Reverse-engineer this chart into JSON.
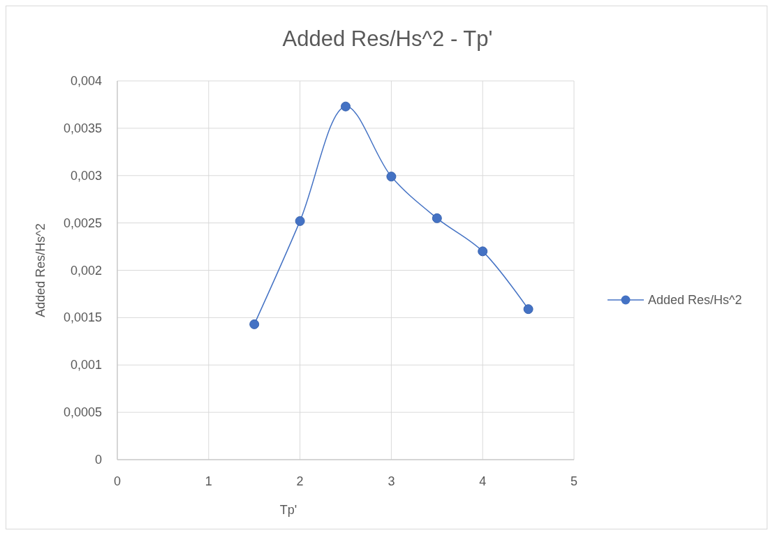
{
  "chart_data": {
    "type": "line",
    "title": "Added Res/Hs^2 - Tp'",
    "xlabel": "Tp'",
    "ylabel": "Added  Res/Hs^2",
    "x": [
      1.5,
      2,
      2.5,
      3,
      3.5,
      4,
      4.5
    ],
    "series": [
      {
        "name": "Added Res/Hs^2",
        "color": "#4472c4",
        "values": [
          0.00143,
          0.00252,
          0.00373,
          0.00299,
          0.00255,
          0.0022,
          0.00159
        ]
      }
    ],
    "xlim": [
      0,
      5
    ],
    "xticks": [
      0,
      1,
      2,
      3,
      4,
      5
    ],
    "ylim": [
      0,
      0.004
    ],
    "yticks": [
      0,
      {
        "value": 0.0005,
        "label": "0,0005"
      },
      {
        "value": 0.001,
        "label": "0,001"
      },
      {
        "value": 0.0015,
        "label": "0,0015"
      },
      {
        "value": 0.002,
        "label": "0,002"
      },
      {
        "value": 0.0025,
        "label": "0,0025"
      },
      {
        "value": 0.003,
        "label": "0,003"
      },
      {
        "value": 0.0035,
        "label": "0,0035"
      },
      {
        "value": 0.004,
        "label": "0,004"
      }
    ],
    "grid": true,
    "legend": "right",
    "marker": "circle",
    "line_style": "solid"
  }
}
